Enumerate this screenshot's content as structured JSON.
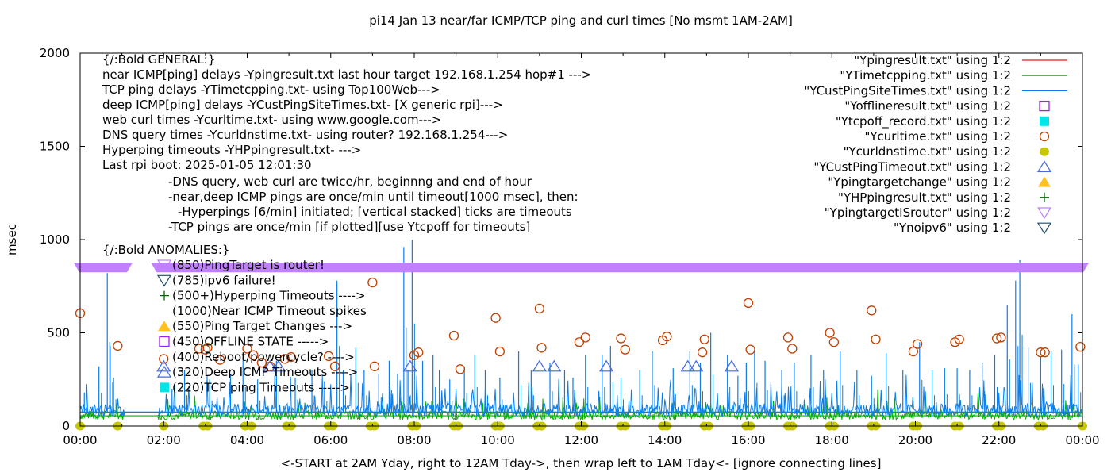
{
  "chart_data": {
    "type": "line",
    "title": "pi14 Jan 13  near/far ICMP/TCP ping and curl times [No msmt 1AM-2AM]",
    "xlabel": "<-START at 2AM Yday, right to 12AM Tday->, then wrap left to 1AM Tday<- [ignore connecting lines]",
    "ylabel": "msec",
    "xlim_hours": [
      0,
      24
    ],
    "ylim": [
      0,
      2000
    ],
    "x_ticks": [
      "00:00",
      "02:00",
      "04:00",
      "06:00",
      "08:00",
      "10:00",
      "12:00",
      "14:00",
      "16:00",
      "18:00",
      "20:00",
      "22:00",
      "00:00"
    ],
    "y_ticks": [
      0,
      500,
      1000,
      1500,
      2000
    ],
    "grid": false,
    "legend_position": "top-right",
    "legend": [
      {
        "label": "\"Ypingresult.txt\" using 1:2",
        "style": "line",
        "color": "#e41a1c"
      },
      {
        "label": "\"YTimetcpping.txt\" using 1:2",
        "style": "line",
        "color": "#00b000"
      },
      {
        "label": "\"YCustPingSiteTimes.txt\" using 1:2",
        "style": "line",
        "color": "#0a7ee8"
      },
      {
        "label": "\"Yofflineresult.txt\" using 1:2",
        "style": "open-square",
        "color": "#a020f0"
      },
      {
        "label": "\"Ytcpoff_record.txt\" using 1:2",
        "style": "filled-square",
        "color": "#00e5e5"
      },
      {
        "label": "\"Ycurltime.txt\" using 1:2",
        "style": "open-circle",
        "color": "#c04000"
      },
      {
        "label": "\"Ycurldnstime.txt\" using 1:2",
        "style": "filled-circle",
        "color": "#c8c800"
      },
      {
        "label": "\"YCustPingTimeout.txt\" using 1:2",
        "style": "open-triangle-up",
        "color": "#4169e1"
      },
      {
        "label": "\"Ypingtargetchange\" using 1:2",
        "style": "filled-triangle-up",
        "color": "#ffc020"
      },
      {
        "label": "\"YHPpingresult.txt\" using 1:2",
        "style": "plus",
        "color": "#006400"
      },
      {
        "label": "\"YpingtargetISrouter\" using 1:2",
        "style": "open-triangle-down",
        "color": "#c080ff"
      },
      {
        "label": "\"Ynoipv6\" using 1:2",
        "style": "open-triangle-down",
        "color": "#1f4e6b"
      }
    ],
    "annotations_general": [
      "{/:Bold GENERAL:}",
      "near ICMP[ping] delays -Ypingresult.txt last hour target 192.168.1.254 hop#1 --->",
      "TCP ping delays -YTimetcpping.txt- using Top100Web--->",
      "deep ICMP[ping] delays -YCustPingSiteTimes.txt- [X generic rpi]--->",
      "web curl times -Ycurltime.txt- using www.google.com--->",
      "DNS query times -Ycurldnstime.txt- using router? 192.168.1.254--->",
      "Hyperping timeouts -YHPpingresult.txt- --->",
      "Last rpi boot: 2025-01-05 12:01:30"
    ],
    "annotations_notes": [
      "-DNS query, web curl are twice/hr, beginnng and end of hour",
      "-near,deep ICMP pings are once/min until timeout[1000 msec], then:",
      "  -Hyperpings [6/min] initiated; [vertical stacked] ticks are timeouts",
      "-TCP pings are once/min [if plotted][use Ytcpoff for timeouts]"
    ],
    "annotations_anomalies_title": "{/:Bold ANOMALIES:}",
    "annotations_anomalies": [
      {
        "text": "(850)PingTarget is router!",
        "marker": "open-triangle-down",
        "color": "#c080ff"
      },
      {
        "text": "(785)ipv6 failure!",
        "marker": "open-triangle-down",
        "color": "#1f4e6b"
      },
      {
        "text": "(500+)Hyperping Timeouts ---->",
        "marker": "plus",
        "color": "#006400"
      },
      {
        "text": "(1000)Near ICMP Timeout spikes",
        "marker": "none",
        "color": ""
      },
      {
        "text": "(550)Ping Target Changes --->",
        "marker": "filled-triangle-up",
        "color": "#ffc020"
      },
      {
        "text": "(450)OFFLINE STATE ----->",
        "marker": "open-square",
        "color": "#a020f0"
      },
      {
        "text": "(400)Reboot/powercycle? ---->",
        "marker": "none",
        "color": ""
      },
      {
        "text": "(320)Deep ICMP Timeouts ---->",
        "marker": "open-triangle-up",
        "color": "#4169e1"
      },
      {
        "text": "(220)TCP ping Timeouts ----->",
        "marker": "filled-square",
        "color": "#00e5e5"
      }
    ],
    "series": [
      {
        "name": "YpingtargetISrouter",
        "kind": "band",
        "value": 850,
        "segments_hours": [
          [
            0,
            1.1
          ],
          [
            1.85,
            24
          ]
        ],
        "color": "#c080ff"
      },
      {
        "name": "YTimetcpping baseline",
        "kind": "baseline",
        "value": 55,
        "color": "#00b000"
      },
      {
        "name": "YCustPingSiteTimes baseline",
        "kind": "baseline",
        "value": 75,
        "color": "#0a7ee8"
      },
      {
        "name": "Ycurltime",
        "kind": "open-circle",
        "color": "#c04000",
        "x_hours": [
          0.0,
          0.9,
          2.0,
          2.85,
          3.0,
          3.05,
          3.35,
          4.0,
          4.15,
          4.35,
          4.55,
          4.9,
          5.05,
          5.95,
          6.1,
          7.0,
          7.05,
          8.0,
          8.1,
          8.95,
          9.1,
          9.95,
          10.05,
          11.0,
          11.05,
          11.95,
          12.1,
          12.95,
          13.05,
          13.95,
          14.05,
          14.9,
          14.95,
          16.0,
          16.05,
          16.95,
          17.05,
          17.95,
          18.05,
          18.95,
          19.05,
          19.95,
          20.05,
          20.95,
          21.05,
          21.95,
          22.05,
          23.0,
          23.1,
          23.95
        ],
        "y_values": [
          605,
          430,
          360,
          415,
          410,
          420,
          355,
          415,
          380,
          340,
          320,
          360,
          370,
          375,
          320,
          770,
          320,
          380,
          395,
          485,
          305,
          580,
          400,
          630,
          420,
          450,
          475,
          470,
          410,
          460,
          480,
          395,
          465,
          660,
          410,
          475,
          415,
          500,
          450,
          620,
          465,
          400,
          440,
          450,
          465,
          470,
          475,
          395,
          395,
          425
        ]
      },
      {
        "name": "Ycurldnstime",
        "kind": "filled-circle",
        "color": "#c8c800",
        "x_hours": [
          0.0,
          0.9,
          2.0,
          2.95,
          3.05,
          3.95,
          4.1,
          4.95,
          5.05,
          5.95,
          6.05,
          6.95,
          7.05,
          7.95,
          8.05,
          8.95,
          9.05,
          9.95,
          10.05,
          10.95,
          11.05,
          11.95,
          12.05,
          12.95,
          13.05,
          13.95,
          14.05,
          14.95,
          15.05,
          15.95,
          16.05,
          16.95,
          17.05,
          17.95,
          18.05,
          18.95,
          19.05,
          19.95,
          20.05,
          20.95,
          21.05,
          21.95,
          22.05,
          22.95,
          23.05,
          24.0
        ],
        "y_values": [
          0,
          0,
          0,
          0,
          0,
          0,
          0,
          0,
          0,
          0,
          0,
          0,
          0,
          0,
          0,
          0,
          0,
          0,
          0,
          0,
          0,
          0,
          0,
          0,
          0,
          0,
          0,
          0,
          0,
          0,
          0,
          0,
          0,
          0,
          0,
          0,
          0,
          0,
          0,
          0,
          0,
          0,
          0,
          0,
          0,
          0
        ]
      },
      {
        "name": "YCustPingTimeout",
        "kind": "open-triangle-up",
        "color": "#4169e1",
        "x_hours": [
          2.0,
          4.55,
          4.75,
          7.9,
          11.0,
          11.35,
          12.6,
          14.55,
          14.75,
          15.6
        ],
        "y_values": [
          320,
          320,
          320,
          320,
          320,
          320,
          320,
          320,
          320,
          320
        ]
      },
      {
        "name": "YCustPingSiteTimes spikes",
        "kind": "spikes",
        "color": "#0a7ee8",
        "x_hours": [
          0.1,
          0.45,
          0.65,
          0.72,
          0.8,
          2.2,
          2.5,
          3.1,
          3.6,
          3.9,
          4.25,
          4.7,
          5.15,
          5.55,
          5.85,
          6.15,
          6.3,
          6.6,
          6.8,
          7.15,
          7.4,
          7.6,
          7.75,
          7.85,
          7.95,
          8.2,
          8.45,
          8.6,
          8.85,
          9.2,
          9.45,
          9.7,
          10.05,
          10.5,
          10.8,
          11.25,
          11.6,
          11.8,
          12.1,
          12.5,
          12.7,
          12.95,
          13.4,
          13.7,
          14.2,
          14.6,
          14.85,
          15.1,
          15.5,
          15.75,
          15.95,
          16.15,
          16.4,
          16.8,
          17.1,
          17.5,
          17.8,
          18.2,
          18.6,
          18.95,
          19.3,
          19.7,
          20.1,
          20.4,
          20.7,
          21.0,
          21.3,
          21.6,
          21.9,
          22.2,
          22.4,
          22.5,
          22.7,
          23.0,
          23.25,
          23.5,
          23.75,
          23.9
        ],
        "y_values": [
          180,
          320,
          820,
          430,
          260,
          200,
          300,
          250,
          280,
          380,
          250,
          350,
          260,
          300,
          240,
          780,
          300,
          420,
          300,
          280,
          350,
          280,
          960,
          300,
          1000,
          350,
          380,
          300,
          250,
          320,
          380,
          300,
          260,
          400,
          300,
          340,
          300,
          260,
          380,
          380,
          430,
          260,
          300,
          400,
          310,
          400,
          340,
          500,
          380,
          270,
          340,
          420,
          350,
          300,
          340,
          380,
          300,
          400,
          300,
          270,
          390,
          300,
          450,
          300,
          310,
          310,
          300,
          340,
          380,
          650,
          780,
          890,
          420,
          370,
          400,
          410,
          600,
          330
        ]
      }
    ]
  }
}
